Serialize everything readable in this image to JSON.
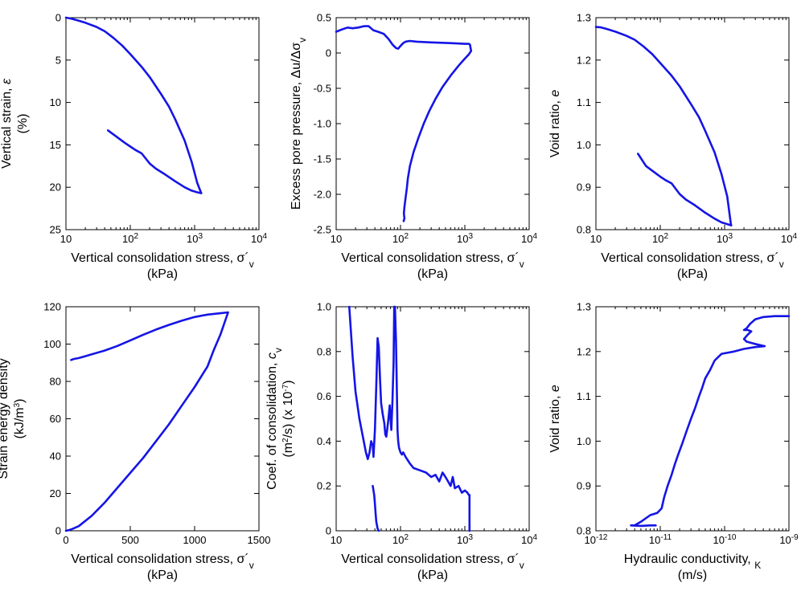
{
  "figure": {
    "series_color": "#1515e6"
  },
  "chart_data": [
    {
      "id": "p1",
      "type": "line",
      "xlabel": "Vertical consolidation stress, σ´v (kPa)",
      "ylabel": "Vertical strain, ε (%)",
      "xlabel_lines": [
        [
          "Vertical consolidation stress, σ´",
          "v"
        ],
        [
          "(kPa)",
          ""
        ]
      ],
      "ylabel_lines": [
        [
          "Vertical strain, ",
          "ε",
          ""
        ],
        [
          "(%)",
          "",
          ""
        ]
      ],
      "xscale": "log",
      "xlim": [
        10,
        10000
      ],
      "yscale": "linear",
      "ylim": [
        0,
        25
      ],
      "y_inverted": true,
      "xticks": [
        {
          "b": "10",
          "e": ""
        },
        {
          "b": "10",
          "e": "2"
        },
        {
          "b": "10",
          "e": "3"
        },
        {
          "b": "10",
          "e": "4"
        }
      ],
      "xtick_values": [
        10,
        100,
        1000,
        10000
      ],
      "yticks": [
        "0",
        "5",
        "10",
        "15",
        "20",
        "25"
      ],
      "ytick_values": [
        0,
        5,
        10,
        15,
        20,
        25
      ],
      "series": [
        {
          "x": [
            10,
            12,
            15,
            20,
            30,
            40,
            55,
            75,
            100,
            150,
            200,
            300,
            400,
            500,
            700,
            900,
            1100,
            1250,
            1270,
            1100,
            900,
            700,
            500,
            350,
            250,
            200,
            150,
            120,
            100,
            80,
            60,
            45
          ],
          "y": [
            0.0,
            0.1,
            0.3,
            0.6,
            1.1,
            1.6,
            2.4,
            3.3,
            4.3,
            5.8,
            7.0,
            9.0,
            10.5,
            12.0,
            14.5,
            17.0,
            19.5,
            20.6,
            20.7,
            20.6,
            20.4,
            20.0,
            19.3,
            18.5,
            17.8,
            17.2,
            16.0,
            15.6,
            15.2,
            14.7,
            14.0,
            13.3
          ]
        }
      ]
    },
    {
      "id": "p2",
      "type": "line",
      "xlabel": "Vertical consolidation stress, σ´v (kPa)",
      "ylabel": "Excess pore pressure, Δu/Δσv",
      "xlabel_lines": [
        [
          "Vertical consolidation stress, σ´",
          "v"
        ],
        [
          "(kPa)",
          ""
        ]
      ],
      "ylabel_lines": [
        [
          "Excess pore pressure, Δu/Δσ",
          "v",
          ""
        ]
      ],
      "xscale": "log",
      "xlim": [
        10,
        10000
      ],
      "yscale": "linear",
      "ylim": [
        -2.5,
        0.5
      ],
      "y_inverted": false,
      "xticks": [
        {
          "b": "10",
          "e": ""
        },
        {
          "b": "10",
          "e": "2"
        },
        {
          "b": "10",
          "e": "3"
        },
        {
          "b": "10",
          "e": "4"
        }
      ],
      "xtick_values": [
        10,
        100,
        1000,
        10000
      ],
      "yticks": [
        "0.5",
        "0",
        "-0.5",
        "-1.0",
        "-1.5",
        "-2.0",
        "-2.5"
      ],
      "ytick_values": [
        0.5,
        0,
        -0.5,
        -1.0,
        -1.5,
        -2.0,
        -2.5
      ],
      "series": [
        {
          "x": [
            10,
            12,
            15,
            18,
            22,
            27,
            32,
            38,
            45,
            55,
            65,
            75,
            85,
            92,
            100,
            110,
            120,
            140,
            180,
            300,
            600,
            1000,
            1150,
            1200,
            1250,
            1150,
            1000,
            800,
            600,
            450,
            350,
            280,
            230,
            190,
            160,
            140,
            130,
            125,
            120,
            115,
            113,
            115,
            112
          ],
          "y": [
            0.3,
            0.33,
            0.36,
            0.35,
            0.36,
            0.38,
            0.38,
            0.32,
            0.3,
            0.27,
            0.2,
            0.12,
            0.07,
            0.06,
            0.1,
            0.14,
            0.16,
            0.17,
            0.16,
            0.15,
            0.14,
            0.13,
            0.13,
            0.12,
            0.03,
            -0.02,
            -0.08,
            -0.18,
            -0.32,
            -0.48,
            -0.65,
            -0.82,
            -1.0,
            -1.2,
            -1.4,
            -1.6,
            -1.78,
            -1.92,
            -2.05,
            -2.18,
            -2.27,
            -2.34,
            -2.38
          ]
        }
      ]
    },
    {
      "id": "p3",
      "type": "line",
      "xlabel": "Vertical consolidation stress, σ´v (kPa)",
      "ylabel": "Void ratio, e",
      "xlabel_lines": [
        [
          "Vertical consolidation stress, σ´",
          "v"
        ],
        [
          "(kPa)",
          ""
        ]
      ],
      "ylabel_lines": [
        [
          "Void ratio, ",
          "e",
          ""
        ]
      ],
      "xscale": "log",
      "xlim": [
        10,
        10000
      ],
      "yscale": "linear",
      "ylim": [
        0.8,
        1.3
      ],
      "y_inverted": false,
      "xticks": [
        {
          "b": "10",
          "e": ""
        },
        {
          "b": "10",
          "e": "2"
        },
        {
          "b": "10",
          "e": "3"
        },
        {
          "b": "10",
          "e": "4"
        }
      ],
      "xtick_values": [
        10,
        100,
        1000,
        10000
      ],
      "yticks": [
        "0.8",
        "0.9",
        "1.0",
        "1.1",
        "1.2",
        "1.3"
      ],
      "ytick_values": [
        0.8,
        0.9,
        1.0,
        1.1,
        1.2,
        1.3
      ],
      "series": [
        {
          "x": [
            10,
            12,
            15,
            20,
            30,
            40,
            55,
            75,
            100,
            150,
            200,
            300,
            400,
            500,
            700,
            900,
            1100,
            1250,
            1270,
            1100,
            900,
            700,
            500,
            350,
            250,
            200,
            150,
            120,
            100,
            80,
            60,
            45
          ],
          "y": [
            1.278,
            1.277,
            1.273,
            1.267,
            1.257,
            1.248,
            1.232,
            1.214,
            1.193,
            1.163,
            1.138,
            1.096,
            1.065,
            1.033,
            0.982,
            0.93,
            0.878,
            0.813,
            0.81,
            0.813,
            0.817,
            0.826,
            0.84,
            0.857,
            0.871,
            0.884,
            0.909,
            0.917,
            0.925,
            0.936,
            0.95,
            0.979
          ]
        }
      ]
    },
    {
      "id": "p4",
      "type": "line",
      "xlabel": "Vertical consolidation stress, σ´v (kPa)",
      "ylabel": "Strain energy density (kJ/m3)",
      "xlabel_lines": [
        [
          "Vertical consolidation stress, σ´",
          "v"
        ],
        [
          "(kPa)",
          ""
        ]
      ],
      "ylabel_lines": [
        [
          "Strain energy density",
          "",
          ""
        ],
        [
          "(kJ/m",
          "",
          "3)"
        ]
      ],
      "xscale": "linear",
      "xlim": [
        0,
        1500
      ],
      "yscale": "linear",
      "ylim": [
        0,
        120
      ],
      "y_inverted": false,
      "xticks": [
        {
          "b": "0",
          "e": ""
        },
        {
          "b": "500",
          "e": ""
        },
        {
          "b": "1000",
          "e": ""
        },
        {
          "b": "1500",
          "e": ""
        }
      ],
      "xtick_values": [
        0,
        500,
        1000,
        1500
      ],
      "yticks": [
        "0",
        "20",
        "40",
        "60",
        "80",
        "100",
        "120"
      ],
      "ytick_values": [
        0,
        20,
        40,
        60,
        80,
        100,
        120
      ],
      "series": [
        {
          "x": [
            0,
            20,
            50,
            100,
            200,
            300,
            400,
            500,
            600,
            700,
            800,
            900,
            1000,
            1100,
            1150,
            1200,
            1230,
            1260,
            1200,
            1100,
            1000,
            900,
            800,
            700,
            600,
            500,
            400,
            300,
            200,
            150,
            100,
            60,
            40
          ],
          "y": [
            0,
            0.3,
            1.0,
            2.5,
            8,
            15,
            23,
            31,
            39,
            48,
            57,
            67,
            77,
            88,
            97,
            105,
            111,
            117,
            116.5,
            115.8,
            114.5,
            112.5,
            110.3,
            107.8,
            105,
            102,
            99,
            96.5,
            94.5,
            93.5,
            92.5,
            92,
            91.5
          ]
        }
      ]
    },
    {
      "id": "p5",
      "type": "line",
      "xlabel": "Vertical consolidation stress, σ´v (kPa)",
      "ylabel": "Coef. of consolidation, cv (m2/s) (x 10-7)",
      "xlabel_lines": [
        [
          "Vertical consolidation stress, σ´",
          "v"
        ],
        [
          "(kPa)",
          ""
        ]
      ],
      "ylabel_lines": [
        [
          "Coef. of consolidation, ",
          "c",
          "v"
        ],
        [
          "(m",
          "2",
          "/s) (x 10-7)"
        ]
      ],
      "xscale": "log",
      "xlim": [
        10,
        10000
      ],
      "yscale": "linear",
      "ylim": [
        0,
        1.0
      ],
      "y_inverted": false,
      "xticks": [
        {
          "b": "10",
          "e": ""
        },
        {
          "b": "10",
          "e": "2"
        },
        {
          "b": "10",
          "e": "3"
        },
        {
          "b": "10",
          "e": "4"
        }
      ],
      "xtick_values": [
        10,
        100,
        1000,
        10000
      ],
      "yticks": [
        "0",
        "0.2",
        "0.4",
        "0.6",
        "0.8",
        "1.0"
      ],
      "ytick_values": [
        0,
        0.2,
        0.4,
        0.6,
        0.8,
        1.0
      ],
      "series": [
        {
          "x": [
            16,
            18,
            20,
            23,
            26,
            29,
            31,
            33,
            35,
            37,
            38,
            40,
            42,
            44,
            46,
            48,
            50,
            53,
            56,
            58,
            60,
            62,
            65,
            68,
            70,
            72,
            75,
            78,
            80,
            82,
            85,
            88,
            90,
            92,
            95,
            100,
            105,
            110,
            120,
            140,
            160,
            200,
            250,
            300,
            350,
            400,
            450,
            500,
            550,
            600,
            650,
            700,
            800,
            900,
            1000,
            1100,
            1150,
            1180,
            1180
          ],
          "y": [
            1.0,
            0.78,
            0.62,
            0.5,
            0.42,
            0.35,
            0.32,
            0.35,
            0.4,
            0.38,
            0.33,
            0.45,
            0.65,
            0.86,
            0.82,
            0.68,
            0.57,
            0.52,
            0.48,
            0.43,
            0.42,
            0.45,
            0.5,
            0.56,
            0.5,
            0.45,
            0.58,
            0.75,
            1.0,
            1.0,
            0.85,
            0.6,
            0.45,
            0.4,
            0.37,
            0.35,
            0.34,
            0.35,
            0.33,
            0.3,
            0.28,
            0.27,
            0.26,
            0.24,
            0.25,
            0.22,
            0.26,
            0.24,
            0.22,
            0.2,
            0.24,
            0.19,
            0.2,
            0.17,
            0.18,
            0.17,
            0.16,
            0.16,
            0.0
          ]
        },
        {
          "x": [
            37,
            38,
            39,
            40,
            41,
            42,
            44,
            46
          ],
          "y": [
            0.2,
            0.18,
            0.16,
            0.12,
            0.08,
            0.04,
            0.01,
            0.0
          ]
        }
      ]
    },
    {
      "id": "p6",
      "type": "line",
      "xlabel": "Hydraulic conductivity, K (m/s)",
      "ylabel": "Void ratio, e",
      "xlabel_lines": [
        [
          "Hydraulic conductivity, ",
          "K",
          ""
        ],
        [
          "(m/s)",
          "",
          ""
        ]
      ],
      "ylabel_lines": [
        [
          "Void ratio, ",
          "e",
          ""
        ]
      ],
      "xscale": "log",
      "xlim": [
        1e-12,
        1e-09
      ],
      "yscale": "linear",
      "ylim": [
        0.8,
        1.3
      ],
      "y_inverted": false,
      "xticks": [
        {
          "b": "10",
          "e": "-12"
        },
        {
          "b": "10",
          "e": "-11"
        },
        {
          "b": "10",
          "e": "-10"
        },
        {
          "b": "10",
          "e": "-9"
        }
      ],
      "xtick_values": [
        1e-12,
        1e-11,
        1e-10,
        1e-09
      ],
      "yticks": [
        "0.8",
        "0.9",
        "1.0",
        "1.1",
        "1.2",
        "1.3"
      ],
      "ytick_values": [
        0.8,
        0.9,
        1.0,
        1.1,
        1.2,
        1.3
      ],
      "series": [
        {
          "x": [
            1e-09,
            6e-10,
            4e-10,
            3e-10,
            2.5e-10,
            2.2e-10,
            2e-10,
            2.3e-10,
            2.6e-10,
            2.3e-10,
            2e-10,
            2.2e-10,
            2.8e-10,
            4.2e-10,
            3e-10,
            2e-10,
            1.4e-10,
            9e-11,
            7e-11,
            6e-11,
            5e-11,
            4.5e-11,
            4e-11,
            3.5e-11,
            3e-11,
            2.6e-11,
            2.2e-11,
            1.9e-11,
            1.7e-11,
            1.5e-11,
            1.3e-11,
            1.15e-11,
            1.05e-11,
            9e-12,
            7e-12,
            5e-12,
            4e-12,
            3.5e-12,
            5e-12,
            7e-12,
            8.5e-12
          ],
          "y": [
            1.279,
            1.279,
            1.277,
            1.272,
            1.262,
            1.252,
            1.248,
            1.248,
            1.245,
            1.238,
            1.228,
            1.222,
            1.218,
            1.212,
            1.21,
            1.206,
            1.2,
            1.195,
            1.18,
            1.16,
            1.14,
            1.12,
            1.1,
            1.075,
            1.05,
            1.025,
            0.995,
            0.97,
            0.95,
            0.925,
            0.9,
            0.875,
            0.85,
            0.84,
            0.835,
            0.82,
            0.812,
            0.812,
            0.811,
            0.812,
            0.812
          ]
        }
      ]
    }
  ]
}
